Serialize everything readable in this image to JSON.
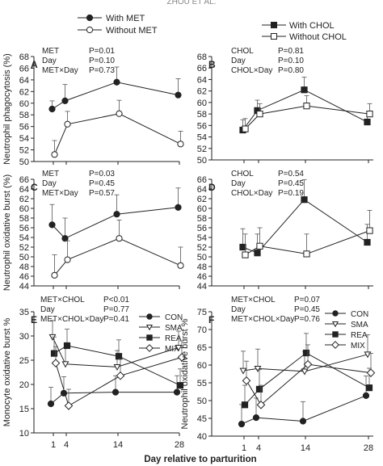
{
  "header": "ZHOU ET AL.",
  "xlabel": "Day relative to parturition",
  "x_ticks": [
    1,
    4,
    14,
    28
  ],
  "legend_top_left": [
    "With MET",
    "Without MET"
  ],
  "legend_top_right": [
    "With CHOL",
    "Without CHOL"
  ],
  "legend_bottom": [
    "CON",
    "SMA",
    "REA",
    "MIX"
  ],
  "chart_data": [
    {
      "panel": "A",
      "type": "line",
      "ylabel": "Neutrophil phagocytosis (%)",
      "ylim": [
        50,
        68
      ],
      "yticks": [
        50,
        52,
        54,
        56,
        58,
        60,
        62,
        64,
        66,
        68
      ],
      "x": [
        1,
        4,
        14,
        28
      ],
      "stats": [
        [
          "MET",
          "P=0.01"
        ],
        [
          "Day",
          "P=0.10"
        ],
        [
          "MET×Day",
          "P=0.73"
        ]
      ],
      "series": [
        {
          "name": "With MET",
          "marker": "filled-circle",
          "values": [
            59.0,
            60.4,
            63.6,
            61.4
          ],
          "err": [
            1.4,
            2.8,
            2.6,
            2.8
          ]
        },
        {
          "name": "Without MET",
          "marker": "open-circle",
          "values": [
            51.2,
            56.4,
            58.2,
            53.0
          ],
          "err": [
            2.4,
            2.2,
            2.3,
            2.2
          ]
        }
      ]
    },
    {
      "panel": "B",
      "type": "line",
      "ylabel": "",
      "ylim": [
        50,
        68
      ],
      "yticks": [
        50,
        52,
        54,
        56,
        58,
        60,
        62,
        64,
        66,
        68
      ],
      "x": [
        1,
        4,
        14,
        28
      ],
      "stats": [
        [
          "CHOL",
          "P=0.81"
        ],
        [
          "Day",
          "P=0.10"
        ],
        [
          "CHOL×Day",
          "P=0.80"
        ]
      ],
      "series": [
        {
          "name": "With CHOL",
          "marker": "filled-square",
          "values": [
            55.2,
            58.6,
            62.2,
            56.6
          ],
          "err": [
            1.8,
            1.8,
            2.2,
            1.5
          ]
        },
        {
          "name": "Without CHOL",
          "marker": "open-square",
          "values": [
            55.4,
            58.0,
            59.4,
            58.0
          ],
          "err": [
            1.8,
            1.8,
            1.8,
            1.8
          ]
        }
      ]
    },
    {
      "panel": "C",
      "type": "line",
      "ylabel": "Neutrophil oxidative burst (%)",
      "ylim": [
        44,
        66
      ],
      "yticks": [
        44,
        46,
        48,
        50,
        52,
        54,
        56,
        58,
        60,
        62,
        64,
        66
      ],
      "x": [
        1,
        4,
        14,
        28
      ],
      "stats": [
        [
          "MET",
          "P=0.03"
        ],
        [
          "Day",
          "P=0.45"
        ],
        [
          "MET×Day",
          "P=0.57"
        ]
      ],
      "series": [
        {
          "name": "With MET",
          "marker": "filled-circle",
          "values": [
            56.6,
            53.8,
            58.8,
            60.2
          ],
          "err": [
            4.2,
            4.2,
            4.0,
            4.0
          ]
        },
        {
          "name": "Without MET",
          "marker": "open-circle",
          "values": [
            46.2,
            49.4,
            53.8,
            48.2
          ],
          "err": [
            4.2,
            3.9,
            3.8,
            3.8
          ]
        }
      ]
    },
    {
      "panel": "D",
      "type": "line",
      "ylabel": "",
      "ylim": [
        44,
        66
      ],
      "yticks": [
        44,
        46,
        48,
        50,
        52,
        54,
        56,
        58,
        60,
        62,
        64,
        66
      ],
      "x": [
        1,
        4,
        14,
        28
      ],
      "stats": [
        [
          "CHOL",
          "P=0.54"
        ],
        [
          "Day",
          "P=0.45"
        ],
        [
          "CHOL×Day",
          "P=0.19"
        ]
      ],
      "series": [
        {
          "name": "With CHOL",
          "marker": "filled-square",
          "values": [
            52.0,
            50.8,
            61.8,
            53.0
          ],
          "err": [
            3.8,
            3.9,
            4.1,
            3.7
          ]
        },
        {
          "name": "Without CHOL",
          "marker": "open-square",
          "values": [
            50.4,
            52.2,
            50.6,
            55.4
          ],
          "err": [
            4.3,
            3.8,
            4.1,
            4.2
          ]
        }
      ]
    },
    {
      "panel": "E",
      "type": "line",
      "ylabel": "Monocyte oxidative burst %",
      "ylim": [
        10,
        35
      ],
      "yticks": [
        10,
        15,
        20,
        25,
        30,
        35
      ],
      "x": [
        1,
        4,
        14,
        28
      ],
      "stats": [
        [
          "MET×CHOL",
          "P<0.01"
        ],
        [
          "Day",
          "P=0.77"
        ],
        [
          "MET×CHOL×Day",
          "P=0.41"
        ]
      ],
      "series": [
        {
          "name": "CON",
          "marker": "filled-circle",
          "values": [
            16.0,
            18.2,
            18.4,
            18.4
          ],
          "err": [
            3.4,
            3.4,
            3.4,
            3.4
          ]
        },
        {
          "name": "SMA",
          "marker": "open-triangle-down",
          "values": [
            29.8,
            24.2,
            23.6,
            27.6
          ],
          "err": [
            3.4,
            3.4,
            3.4,
            3.4
          ]
        },
        {
          "name": "REA",
          "marker": "filled-square",
          "values": [
            26.4,
            28.0,
            25.8,
            19.8
          ],
          "err": [
            3.4,
            3.4,
            3.4,
            3.4
          ]
        },
        {
          "name": "MIX",
          "marker": "open-diamond",
          "values": [
            24.4,
            15.6,
            21.8,
            25.6
          ],
          "err": [
            3.4,
            3.4,
            3.4,
            3.4
          ]
        }
      ]
    },
    {
      "panel": "F",
      "type": "line",
      "ylabel": "Neutrophil oxidative burst %",
      "ylim": [
        40,
        75
      ],
      "yticks": [
        40,
        45,
        50,
        55,
        60,
        65,
        70,
        75
      ],
      "x": [
        1,
        4,
        14,
        28
      ],
      "stats": [
        [
          "MET×CHOL",
          "P=0.07"
        ],
        [
          "Day",
          "P=0.45"
        ],
        [
          "MET×CHOL×Day",
          "P=0.76"
        ]
      ],
      "series": [
        {
          "name": "CON",
          "marker": "filled-circle",
          "values": [
            43.4,
            45.2,
            44.2,
            51.4
          ],
          "err": [
            5.5,
            5.5,
            5.5,
            5.5
          ]
        },
        {
          "name": "SMA",
          "marker": "open-triangle-down",
          "values": [
            58.4,
            59.0,
            58.2,
            63.0
          ],
          "err": [
            5.5,
            5.5,
            5.5,
            5.5
          ]
        },
        {
          "name": "REA",
          "marker": "filled-square",
          "values": [
            48.8,
            53.2,
            63.4,
            53.6
          ],
          "err": [
            5.5,
            5.5,
            5.5,
            5.5
          ]
        },
        {
          "name": "MIX",
          "marker": "open-diamond",
          "values": [
            55.6,
            48.8,
            60.2,
            57.8
          ],
          "err": [
            5.5,
            5.5,
            5.5,
            5.5
          ]
        }
      ]
    }
  ]
}
